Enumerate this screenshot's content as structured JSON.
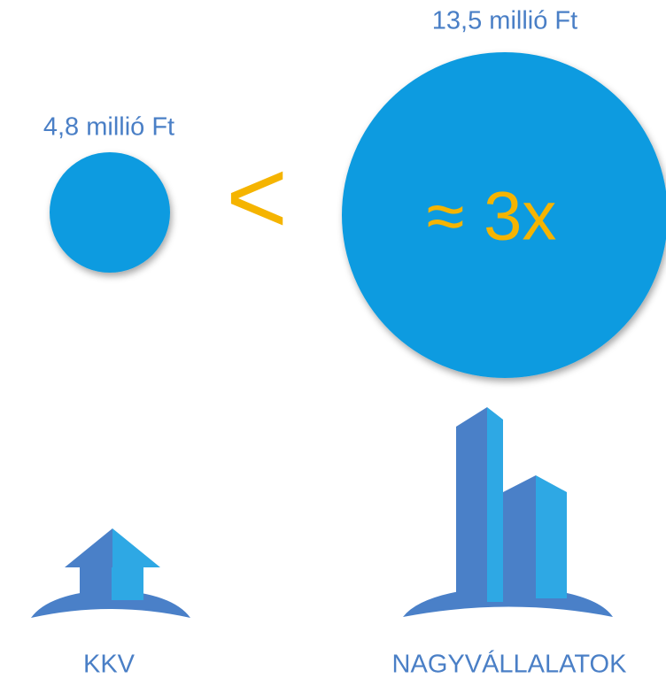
{
  "small": {
    "value_label": "4,8 millió Ft",
    "name": "KKV"
  },
  "large": {
    "value_label": "13,5 millió Ft",
    "name": "NAGYVÁLLALATOK"
  },
  "comparison": "<",
  "ratio": "≈ 3x"
}
